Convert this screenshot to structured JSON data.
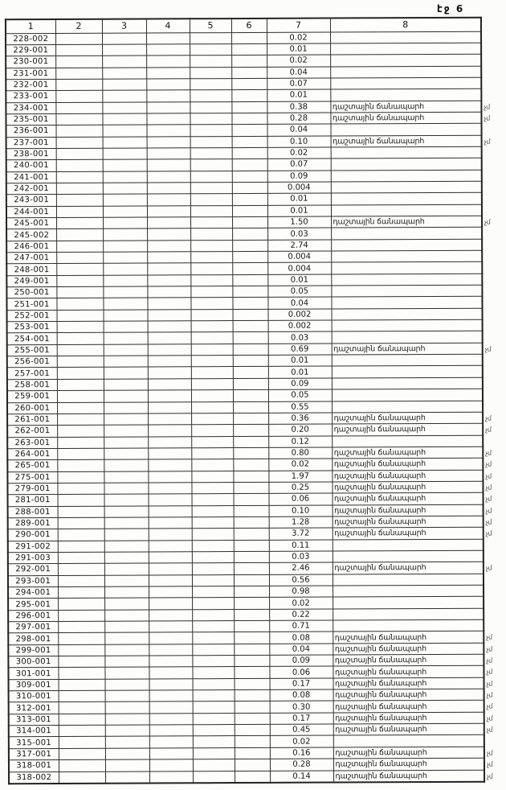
{
  "page": {
    "header": "էջ 6"
  },
  "table": {
    "columns": [
      "1",
      "2",
      "3",
      "4",
      "5",
      "6",
      "7",
      "8"
    ],
    "rows": [
      {
        "code": "228-002",
        "value": "0.02",
        "note": "",
        "mark": ""
      },
      {
        "code": "229-001",
        "value": "0.01",
        "note": "",
        "mark": ""
      },
      {
        "code": "230-001",
        "value": "0.02",
        "note": "",
        "mark": ""
      },
      {
        "code": "231-001",
        "value": "0.04",
        "note": "",
        "mark": ""
      },
      {
        "code": "232-001",
        "value": "0.07",
        "note": "",
        "mark": ""
      },
      {
        "code": "233-001",
        "value": "0.01",
        "note": "",
        "mark": ""
      },
      {
        "code": "234-001",
        "value": "0.38",
        "note": "դաշտային ճանապարհ",
        "mark": "չմ"
      },
      {
        "code": "235-001",
        "value": "0.28",
        "note": "դաշտային ճանապարհ",
        "mark": "չմ"
      },
      {
        "code": "236-001",
        "value": "0.04",
        "note": "",
        "mark": ""
      },
      {
        "code": "237-001",
        "value": "0.10",
        "note": "դաշտային ճանապարհ",
        "mark": "չմ"
      },
      {
        "code": "238-001",
        "value": "0.02",
        "note": "",
        "mark": ""
      },
      {
        "code": "240-001",
        "value": "0.07",
        "note": "",
        "mark": ""
      },
      {
        "code": "241-001",
        "value": "0.09",
        "note": "",
        "mark": ""
      },
      {
        "code": "242-001",
        "value": "0.004",
        "note": "",
        "mark": ""
      },
      {
        "code": "243-001",
        "value": "0.01",
        "note": "",
        "mark": ""
      },
      {
        "code": "244-001",
        "value": "0.01",
        "note": "",
        "mark": ""
      },
      {
        "code": "245-001",
        "value": "1.50",
        "note": "դաշտային ճանապարհ",
        "mark": "չմ"
      },
      {
        "code": "245-002",
        "value": "0.03",
        "note": "",
        "mark": ""
      },
      {
        "code": "246-001",
        "value": "2.74",
        "note": "",
        "mark": ""
      },
      {
        "code": "247-001",
        "value": "0.004",
        "note": "",
        "mark": ""
      },
      {
        "code": "248-001",
        "value": "0.004",
        "note": "",
        "mark": ""
      },
      {
        "code": "249-001",
        "value": "0.01",
        "note": "",
        "mark": ""
      },
      {
        "code": "250-001",
        "value": "0.05",
        "note": "",
        "mark": ""
      },
      {
        "code": "251-001",
        "value": "0.04",
        "note": "",
        "mark": ""
      },
      {
        "code": "252-001",
        "value": "0.002",
        "note": "",
        "mark": ""
      },
      {
        "code": "253-001",
        "value": "0.002",
        "note": "",
        "mark": ""
      },
      {
        "code": "254-001",
        "value": "0.03",
        "note": "",
        "mark": ""
      },
      {
        "code": "255-001",
        "value": "0.69",
        "note": "դաշտային ճանապարհ",
        "mark": "չմ"
      },
      {
        "code": "256-001",
        "value": "0.01",
        "note": "",
        "mark": ""
      },
      {
        "code": "257-001",
        "value": "0.01",
        "note": "",
        "mark": ""
      },
      {
        "code": "258-001",
        "value": "0.09",
        "note": "",
        "mark": ""
      },
      {
        "code": "259-001",
        "value": "0.05",
        "note": "",
        "mark": ""
      },
      {
        "code": "260-001",
        "value": "0.55",
        "note": "",
        "mark": ""
      },
      {
        "code": "261-001",
        "value": "0.36",
        "note": "դաշտային ճանապարհ",
        "mark": "չմ"
      },
      {
        "code": "262-001",
        "value": "0.20",
        "note": "դաշտային ճանապարհ",
        "mark": "չմ"
      },
      {
        "code": "263-001",
        "value": "0.12",
        "note": "",
        "mark": ""
      },
      {
        "code": "264-001",
        "value": "0.80",
        "note": "դաշտային ճանապարհ",
        "mark": "չմ"
      },
      {
        "code": "265-001",
        "value": "0.02",
        "note": "դաշտային ճանապարհ",
        "mark": "չմ"
      },
      {
        "code": "275-001",
        "value": "1.97",
        "note": "դաշտային ճանապարհ",
        "mark": "չմ"
      },
      {
        "code": "279-001",
        "value": "0.25",
        "note": "դաշտային ճանապարհ",
        "mark": "չմ"
      },
      {
        "code": "281-001",
        "value": "0.06",
        "note": "դաշտային ճանապարհ",
        "mark": "չմ"
      },
      {
        "code": "288-001",
        "value": "0.10",
        "note": "դաշտային ճանապարհ",
        "mark": "չմ"
      },
      {
        "code": "289-001",
        "value": "1.28",
        "note": "դաշտային ճանապարհ",
        "mark": "չմ"
      },
      {
        "code": "290-001",
        "value": "3.72",
        "note": "դաշտային ճանապարհ",
        "mark": "չմ"
      },
      {
        "code": "291-002",
        "value": "0.11",
        "note": "",
        "mark": ""
      },
      {
        "code": "291-003",
        "value": "0.03",
        "note": "",
        "mark": ""
      },
      {
        "code": "292-001",
        "value": "2.46",
        "note": "դաշտային ճանապարհ",
        "mark": "չմ"
      },
      {
        "code": "293-001",
        "value": "0.56",
        "note": "",
        "mark": ""
      },
      {
        "code": "294-001",
        "value": "0.98",
        "note": "",
        "mark": ""
      },
      {
        "code": "295-001",
        "value": "0.02",
        "note": "",
        "mark": ""
      },
      {
        "code": "296-001",
        "value": "0.22",
        "note": "",
        "mark": ""
      },
      {
        "code": "297-001",
        "value": "0.71",
        "note": "",
        "mark": ""
      },
      {
        "code": "298-001",
        "value": "0.08",
        "note": "դաշտային ճանապարհ",
        "mark": "չմ"
      },
      {
        "code": "299-001",
        "value": "0.04",
        "note": "դաշտային ճանապարհ",
        "mark": "չմ"
      },
      {
        "code": "300-001",
        "value": "0.09",
        "note": "դաշտային ճանապարհ",
        "mark": "չմ"
      },
      {
        "code": "301-001",
        "value": "0.06",
        "note": "դաշտային ճանապարհ",
        "mark": "չմ"
      },
      {
        "code": "309-001",
        "value": "0.17",
        "note": "դաշտային ճանապարհ",
        "mark": "չմ"
      },
      {
        "code": "310-001",
        "value": "0.08",
        "note": "դաշտային ճանապարհ",
        "mark": "չմ"
      },
      {
        "code": "312-001",
        "value": "0.30",
        "note": "դաշտային ճանապարհ",
        "mark": "չմ"
      },
      {
        "code": "313-001",
        "value": "0.17",
        "note": "դաշտային ճանապարհ",
        "mark": "չմ"
      },
      {
        "code": "314-001",
        "value": "0.45",
        "note": "դաշտային ճանապարհ",
        "mark": "չմ"
      },
      {
        "code": "315-001",
        "value": "0.02",
        "note": "",
        "mark": ""
      },
      {
        "code": "317-001",
        "value": "0.16",
        "note": "դաշտային ճանապարհ",
        "mark": "չմ"
      },
      {
        "code": "318-001",
        "value": "0.28",
        "note": "դաշտային ճանապարհ",
        "mark": "չմ"
      },
      {
        "code": "318-002",
        "value": "0.14",
        "note": "դաշտային ճանապարհ",
        "mark": "չմ"
      }
    ]
  }
}
